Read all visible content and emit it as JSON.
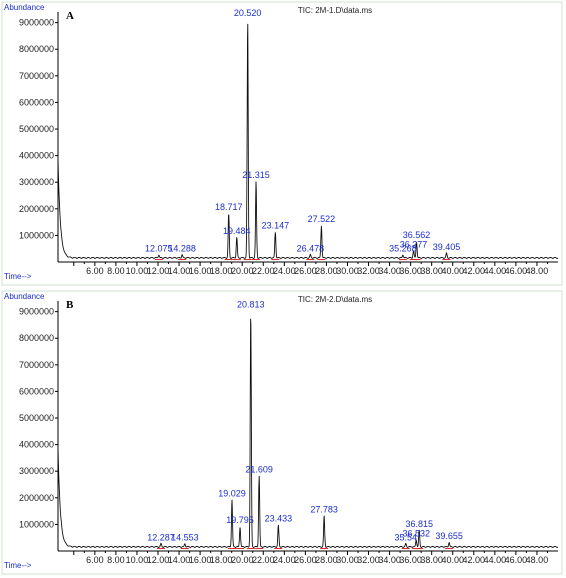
{
  "chart_data": [
    {
      "type": "line",
      "panel_letter": "A",
      "title": "TIC: 2M-1.D\\data.ms",
      "ylabel": "Abundance",
      "xlabel": "Time-->",
      "xlim": [
        2.5,
        50.0
      ],
      "ylim": [
        0,
        9400000
      ],
      "x_ticks": [
        "6.00",
        "8.00",
        "10.00",
        "12.00",
        "14.00",
        "16.00",
        "18.00",
        "20.00",
        "22.00",
        "24.00",
        "26.00",
        "28.00",
        "30.00",
        "32.00",
        "34.00",
        "36.00",
        "38.00",
        "40.00",
        "42.00",
        "44.00",
        "46.00",
        "48.00"
      ],
      "y_ticks": [
        "1000000",
        "2000000",
        "3000000",
        "4000000",
        "5000000",
        "6000000",
        "7000000",
        "8000000",
        "9000000"
      ],
      "peaks": [
        {
          "x": 12.075,
          "y": 250000,
          "label": "12.075"
        },
        {
          "x": 14.288,
          "y": 250000,
          "label": "14.288"
        },
        {
          "x": 18.717,
          "y": 1800000,
          "label": "18.717"
        },
        {
          "x": 19.484,
          "y": 900000,
          "label": "19.484"
        },
        {
          "x": 20.52,
          "y": 9100000,
          "label": "20.520"
        },
        {
          "x": 21.315,
          "y": 3000000,
          "label": "21.315"
        },
        {
          "x": 23.147,
          "y": 1100000,
          "label": "23.147"
        },
        {
          "x": 26.478,
          "y": 250000,
          "label": "26.478"
        },
        {
          "x": 27.522,
          "y": 1350000,
          "label": "27.522"
        },
        {
          "x": 35.268,
          "y": 250000,
          "label": "35.268"
        },
        {
          "x": 36.277,
          "y": 400000,
          "label": "36.277"
        },
        {
          "x": 36.562,
          "y": 750000,
          "label": "36.562"
        },
        {
          "x": 39.405,
          "y": 300000,
          "label": "39.405"
        }
      ],
      "grid": false
    },
    {
      "type": "line",
      "panel_letter": "B",
      "title": "TIC: 2M-2.D\\data.ms",
      "ylabel": "Abundance",
      "xlabel": "Time-->",
      "xlim": [
        2.5,
        50.0
      ],
      "ylim": [
        0,
        9400000
      ],
      "x_ticks": [
        "6.00",
        "8.00",
        "10.00",
        "12.00",
        "14.00",
        "16.00",
        "18.00",
        "20.00",
        "22.00",
        "24.00",
        "26.00",
        "28.00",
        "30.00",
        "32.00",
        "34.00",
        "36.00",
        "38.00",
        "40.00",
        "42.00",
        "44.00",
        "46.00",
        "48.00"
      ],
      "y_ticks": [
        "1000000",
        "2000000",
        "3000000",
        "4000000",
        "5000000",
        "6000000",
        "7000000",
        "8000000",
        "9000000"
      ],
      "peaks": [
        {
          "x": 12.287,
          "y": 250000,
          "label": "12.287"
        },
        {
          "x": 14.553,
          "y": 250000,
          "label": "14.553"
        },
        {
          "x": 19.029,
          "y": 1900000,
          "label": "19.029"
        },
        {
          "x": 19.795,
          "y": 900000,
          "label": "19.795"
        },
        {
          "x": 20.813,
          "y": 9000000,
          "label": "20.813"
        },
        {
          "x": 21.609,
          "y": 2800000,
          "label": "21.609"
        },
        {
          "x": 23.433,
          "y": 950000,
          "label": "23.433"
        },
        {
          "x": 27.783,
          "y": 1300000,
          "label": "27.783"
        },
        {
          "x": 35.54,
          "y": 250000,
          "label": "35.54"
        },
        {
          "x": 36.532,
          "y": 400000,
          "label": "36.532"
        },
        {
          "x": 36.815,
          "y": 750000,
          "label": "36.815"
        },
        {
          "x": 39.655,
          "y": 300000,
          "label": "39.655"
        }
      ],
      "grid": false
    }
  ]
}
